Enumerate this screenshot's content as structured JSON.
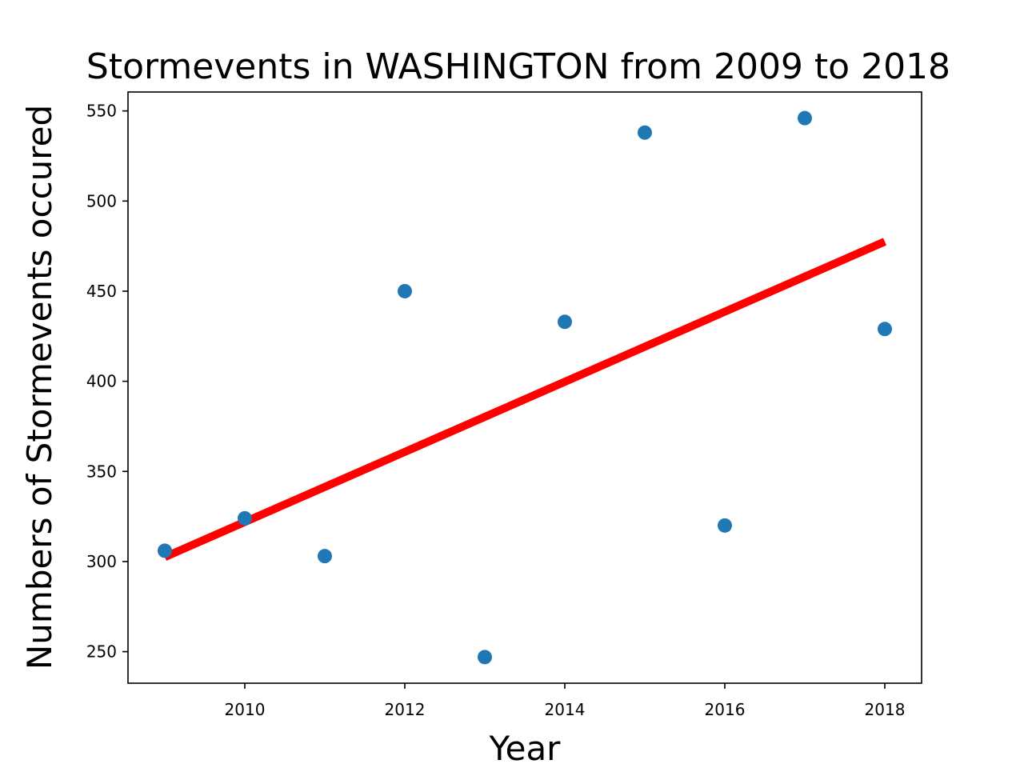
{
  "chart_data": {
    "type": "scatter",
    "title": "Stormevents in WASHINGTON from 2009 to 2018",
    "xlabel": "Year",
    "ylabel": "Numbers of Stormevents occured",
    "xlim": [
      2008.54,
      2018.46
    ],
    "ylim": [
      232.5,
      560.5
    ],
    "x_ticks": [
      2010,
      2012,
      2014,
      2016,
      2018
    ],
    "y_ticks": [
      250,
      300,
      350,
      400,
      450,
      500,
      550
    ],
    "grid": false,
    "series": [
      {
        "kind": "scatter",
        "color": "#1f77b4",
        "points": [
          {
            "x": 2009,
            "y": 306
          },
          {
            "x": 2010,
            "y": 324
          },
          {
            "x": 2011,
            "y": 303
          },
          {
            "x": 2012,
            "y": 450
          },
          {
            "x": 2013,
            "y": 247
          },
          {
            "x": 2014,
            "y": 433
          },
          {
            "x": 2015,
            "y": 538
          },
          {
            "x": 2016,
            "y": 320
          },
          {
            "x": 2017,
            "y": 546
          },
          {
            "x": 2018,
            "y": 429
          }
        ]
      },
      {
        "kind": "trend-line",
        "color": "#ff0000",
        "points": [
          {
            "x": 2009,
            "y": 302.5
          },
          {
            "x": 2018,
            "y": 477.5
          }
        ]
      }
    ]
  }
}
